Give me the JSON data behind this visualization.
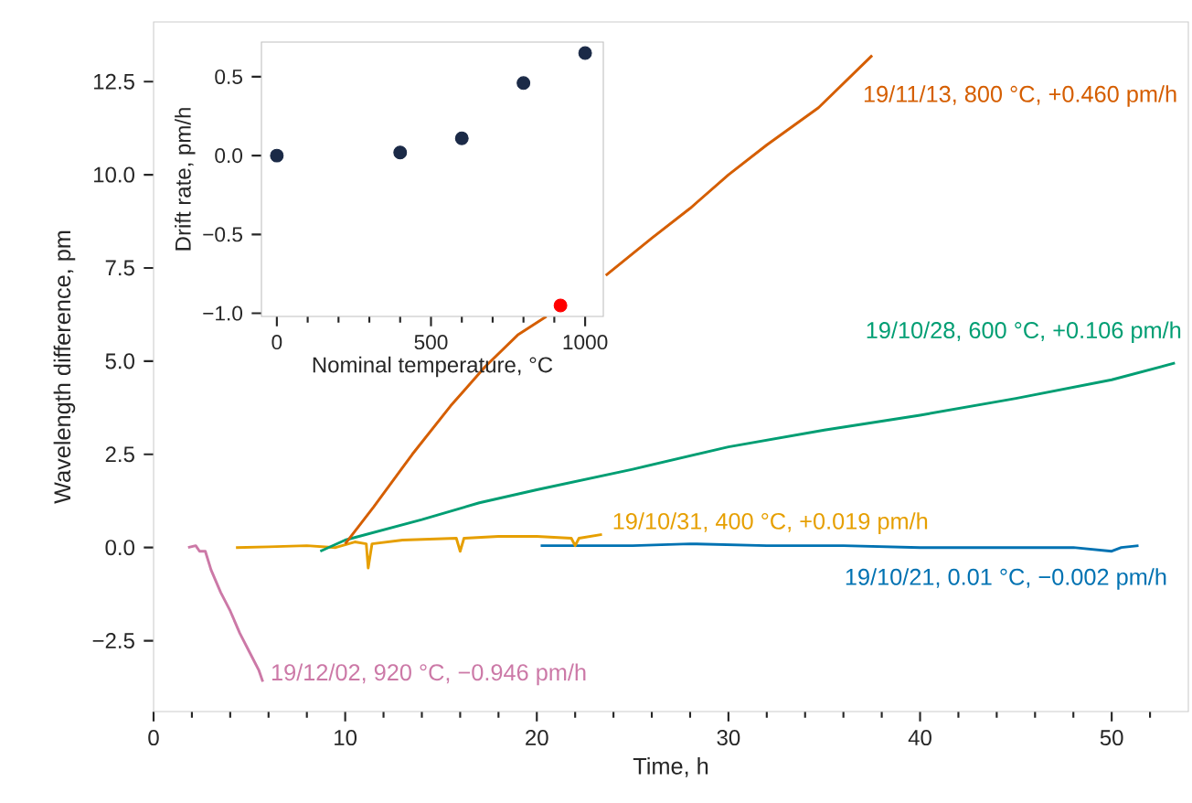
{
  "chart_data": [
    {
      "type": "line",
      "xlabel": "Time, h",
      "ylabel": "Wavelength difference, pm",
      "marker": "none",
      "line_style": "solid",
      "xlim": [
        0,
        54
      ],
      "ylim": [
        -4.4,
        14.1
      ],
      "xticks": [
        0,
        {
          "value": 2,
          "label": null
        },
        {
          "value": 4,
          "label": null
        },
        {
          "value": 6,
          "label": null
        },
        {
          "value": 8,
          "label": null
        },
        10,
        {
          "value": 12,
          "label": null
        },
        {
          "value": 14,
          "label": null
        },
        {
          "value": 16,
          "label": null
        },
        {
          "value": 18,
          "label": null
        },
        20,
        {
          "value": 22,
          "label": null
        },
        {
          "value": 24,
          "label": null
        },
        {
          "value": 26,
          "label": null
        },
        {
          "value": 28,
          "label": null
        },
        30,
        {
          "value": 32,
          "label": null
        },
        {
          "value": 34,
          "label": null
        },
        {
          "value": 36,
          "label": null
        },
        {
          "value": 38,
          "label": null
        },
        40,
        {
          "value": 42,
          "label": null
        },
        {
          "value": 44,
          "label": null
        },
        {
          "value": 46,
          "label": null
        },
        {
          "value": 48,
          "label": null
        },
        50,
        {
          "value": 52,
          "label": null
        }
      ],
      "yticks": [
        {
          "value": -2.5,
          "label": "−2.5"
        },
        {
          "value": 0,
          "label": "0.0"
        },
        {
          "value": 2.5,
          "label": "2.5"
        },
        {
          "value": 5,
          "label": "5.0"
        },
        {
          "value": 7.5,
          "label": "7.5"
        },
        {
          "value": 10,
          "label": "10.0"
        },
        {
          "value": 12.5,
          "label": "12.5"
        }
      ],
      "series": [
        {
          "name": "19/10/21, 0.01 °C, −0.002 pm/h",
          "color": "#0072b2",
          "x": [
            20.2,
            22,
            25,
            28,
            32,
            36,
            40,
            44,
            48,
            50,
            50.5,
            51.4
          ],
          "values": [
            0.05,
            0.05,
            0.05,
            0.1,
            0.05,
            0.05,
            0.0,
            0.0,
            0.0,
            -0.1,
            0.0,
            0.05
          ]
        },
        {
          "name": "19/10/31, 400 °C, +0.019 pm/h",
          "color": "#e69f00",
          "x": [
            4.3,
            6,
            8,
            9.5,
            10.5,
            11.1,
            11.2,
            11.4,
            13,
            15.8,
            16,
            16.2,
            18,
            20,
            21.8,
            22,
            22.2,
            23.4
          ],
          "values": [
            0.0,
            0.02,
            0.05,
            0.0,
            0.15,
            0.1,
            -0.55,
            0.1,
            0.2,
            0.25,
            -0.1,
            0.25,
            0.3,
            0.3,
            0.25,
            0.05,
            0.25,
            0.35
          ]
        },
        {
          "name": "19/10/28, 600 °C, +0.106 pm/h",
          "color": "#009e73",
          "x": [
            8.7,
            10,
            14,
            17,
            20,
            25,
            30,
            35,
            40,
            45,
            50,
            53.3
          ],
          "values": [
            -0.1,
            0.2,
            0.75,
            1.2,
            1.55,
            2.1,
            2.7,
            3.15,
            3.55,
            4.0,
            4.5,
            4.95
          ]
        },
        {
          "name": "19/11/13, 800 °C, +0.460 pm/h",
          "color": "#d55e00",
          "x": [
            10,
            11.5,
            13.5,
            15.5,
            17.3,
            19,
            20.5,
            22,
            23.6,
            26,
            28,
            30,
            32,
            34.7,
            37.5
          ],
          "values": [
            0.1,
            1.1,
            2.5,
            3.8,
            4.85,
            5.7,
            6.2,
            null,
            7.3,
            8.3,
            9.1,
            10.0,
            10.8,
            11.8,
            13.2
          ]
        },
        {
          "name": "19/12/02, 920 °C, −0.946 pm/h",
          "color": "#cc79a7",
          "x": [
            1.8,
            2.2,
            2.4,
            2.7,
            3,
            3.5,
            4,
            4.5,
            5,
            5.5,
            5.7
          ],
          "values": [
            0.0,
            0.05,
            -0.1,
            -0.1,
            -0.6,
            -1.2,
            -1.7,
            -2.3,
            -2.8,
            -3.3,
            -3.6
          ]
        }
      ]
    },
    {
      "type": "scatter",
      "xlabel": "Nominal temperature, °C",
      "ylabel": "Drift rate, pm/h",
      "marker": "circle",
      "xlim": [
        -50,
        1059
      ],
      "ylim": [
        -1.02,
        0.72
      ],
      "xticks": [
        0,
        {
          "value": 100,
          "label": null
        },
        {
          "value": 200,
          "label": null
        },
        {
          "value": 300,
          "label": null
        },
        {
          "value": 400,
          "label": null
        },
        500,
        {
          "value": 600,
          "label": null
        },
        {
          "value": 700,
          "label": null
        },
        {
          "value": 800,
          "label": null
        },
        {
          "value": 900,
          "label": null
        },
        1000
      ],
      "yticks": [
        {
          "value": -1,
          "label": "−1.0"
        },
        {
          "value": -0.5,
          "label": "−0.5"
        },
        {
          "value": 0,
          "label": "0.0"
        },
        {
          "value": 0.5,
          "label": "0.5"
        }
      ],
      "x": [
        0,
        400,
        600,
        800,
        1000,
        920
      ],
      "values": [
        0.0,
        0.02,
        0.11,
        0.46,
        0.65,
        -0.95
      ],
      "colors": [
        "#1b2a47",
        "#1b2a47",
        "#1b2a47",
        "#1b2a47",
        "#1b2a47",
        "#ff0000"
      ]
    }
  ]
}
